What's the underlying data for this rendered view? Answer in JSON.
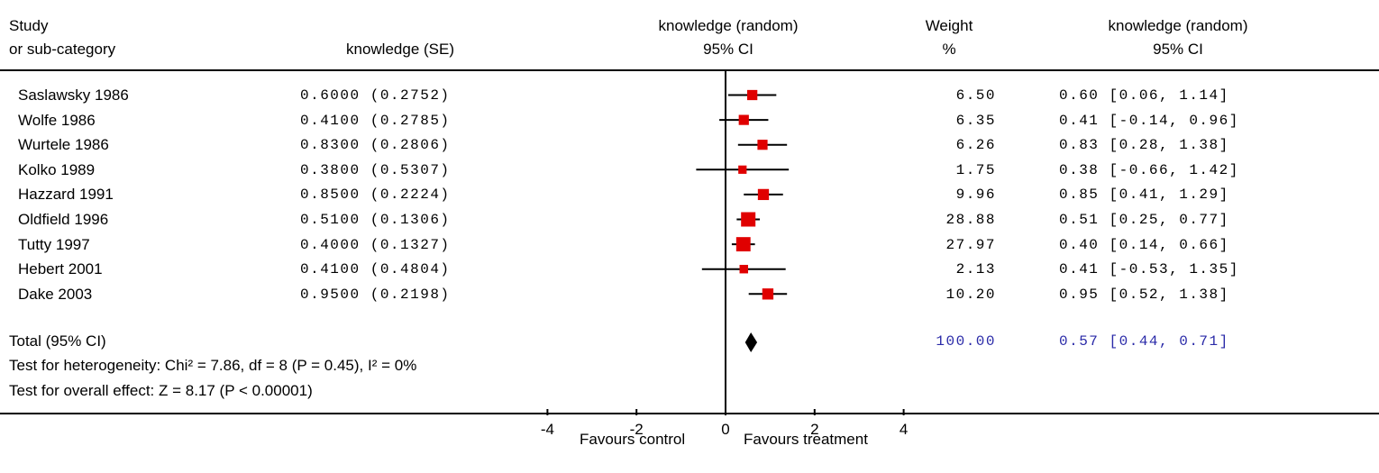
{
  "header": {
    "col1_line1": "Study",
    "col1_line2": "or sub-category",
    "col2": "knowledge (SE)",
    "col3_line1": "knowledge (random)",
    "col3_line2": "95% CI",
    "col4_line1": "Weight",
    "col4_line2": "%",
    "col5_line1": "knowledge (random)",
    "col5_line2": "95% CI"
  },
  "rows": [
    {
      "study": "Saslawsky 1986",
      "est_se": "0.6000 (0.2752)",
      "weight": "6.50",
      "ci_text": "0.60 [0.06, 1.14]"
    },
    {
      "study": "Wolfe 1986",
      "est_se": "0.4100 (0.2785)",
      "weight": "6.35",
      "ci_text": "0.41 [-0.14, 0.96]"
    },
    {
      "study": "Wurtele 1986",
      "est_se": "0.8300 (0.2806)",
      "weight": "6.26",
      "ci_text": "0.83 [0.28, 1.38]"
    },
    {
      "study": "Kolko 1989",
      "est_se": "0.3800 (0.5307)",
      "weight": "1.75",
      "ci_text": "0.38 [-0.66, 1.42]"
    },
    {
      "study": "Hazzard 1991",
      "est_se": "0.8500 (0.2224)",
      "weight": "9.96",
      "ci_text": "0.85 [0.41, 1.29]"
    },
    {
      "study": "Oldfield 1996",
      "est_se": "0.5100 (0.1306)",
      "weight": "28.88",
      "ci_text": "0.51 [0.25, 0.77]"
    },
    {
      "study": "Tutty 1997",
      "est_se": "0.4000 (0.1327)",
      "weight": "27.97",
      "ci_text": "0.40 [0.14, 0.66]"
    },
    {
      "study": "Hebert 2001",
      "est_se": "0.4100 (0.4804)",
      "weight": "2.13",
      "ci_text": "0.41 [-0.53, 1.35]"
    },
    {
      "study": "Dake 2003",
      "est_se": "0.9500 (0.2198)",
      "weight": "10.20",
      "ci_text": "0.95 [0.52, 1.38]"
    }
  ],
  "total": {
    "label": "Total (95% CI)",
    "weight": "100.00",
    "ci_text": "0.57 [0.44, 0.71]"
  },
  "heterogeneity": "Test for heterogeneity: Chi² = 7.86, df = 8 (P = 0.45), I² = 0%",
  "overall_effect": "Test for overall effect: Z = 8.17 (P < 0.00001)",
  "favours_left": "Favours control",
  "favours_right": "Favours treatment",
  "colors": {
    "marker": "#e00000",
    "summary_text": "#2a2aa8",
    "line": "#000000"
  },
  "chart_data": {
    "type": "forest",
    "x_ticks": [
      -4,
      -2,
      0,
      2,
      4
    ],
    "x_tick_labels": [
      "-4",
      "-2",
      "0",
      "2",
      "4"
    ],
    "xlim": [
      -4,
      4
    ],
    "studies": [
      {
        "name": "Saslawsky 1986",
        "estimate": 0.6,
        "lower": 0.06,
        "upper": 1.14,
        "weight": 6.5
      },
      {
        "name": "Wolfe 1986",
        "estimate": 0.41,
        "lower": -0.14,
        "upper": 0.96,
        "weight": 6.35
      },
      {
        "name": "Wurtele 1986",
        "estimate": 0.83,
        "lower": 0.28,
        "upper": 1.38,
        "weight": 6.26
      },
      {
        "name": "Kolko 1989",
        "estimate": 0.38,
        "lower": -0.66,
        "upper": 1.42,
        "weight": 1.75
      },
      {
        "name": "Hazzard 1991",
        "estimate": 0.85,
        "lower": 0.41,
        "upper": 1.29,
        "weight": 9.96
      },
      {
        "name": "Oldfield 1996",
        "estimate": 0.51,
        "lower": 0.25,
        "upper": 0.77,
        "weight": 28.88
      },
      {
        "name": "Tutty 1997",
        "estimate": 0.4,
        "lower": 0.14,
        "upper": 0.66,
        "weight": 27.97
      },
      {
        "name": "Hebert 2001",
        "estimate": 0.41,
        "lower": -0.53,
        "upper": 1.35,
        "weight": 2.13
      },
      {
        "name": "Dake 2003",
        "estimate": 0.95,
        "lower": 0.52,
        "upper": 1.38,
        "weight": 10.2
      }
    ],
    "summary": {
      "estimate": 0.57,
      "lower": 0.44,
      "upper": 0.71
    }
  }
}
